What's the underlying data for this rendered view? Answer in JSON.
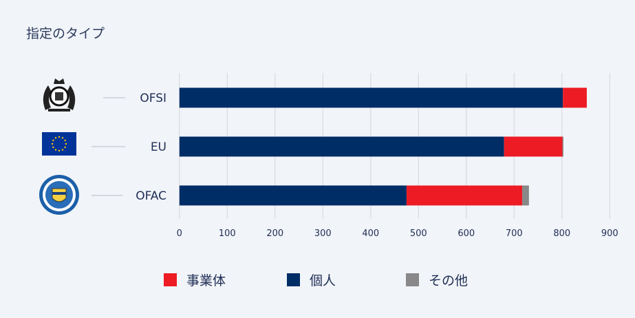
{
  "title": "指定のタイプ",
  "chart_data": {
    "type": "bar",
    "orientation": "horizontal",
    "stacked": true,
    "categories": [
      "OFSI",
      "EU",
      "OFAC"
    ],
    "category_icons": [
      "uk-royal-coat-of-arms-icon",
      "eu-flag-icon",
      "us-treasury-seal-icon"
    ],
    "series": [
      {
        "name": "個人",
        "color": "#002d66",
        "values": [
          802,
          679,
          475
        ]
      },
      {
        "name": "事業体",
        "color": "#ed1c24",
        "values": [
          50,
          122,
          242
        ]
      },
      {
        "name": "その他",
        "color": "#888888",
        "values": [
          0,
          2,
          14
        ]
      }
    ],
    "xlim": [
      0,
      900
    ],
    "xticks": [
      0,
      100,
      200,
      300,
      400,
      500,
      600,
      700,
      800,
      900
    ],
    "grid": true,
    "legend_position": "bottom",
    "legend_order": [
      "事業体",
      "個人",
      "その他"
    ]
  }
}
